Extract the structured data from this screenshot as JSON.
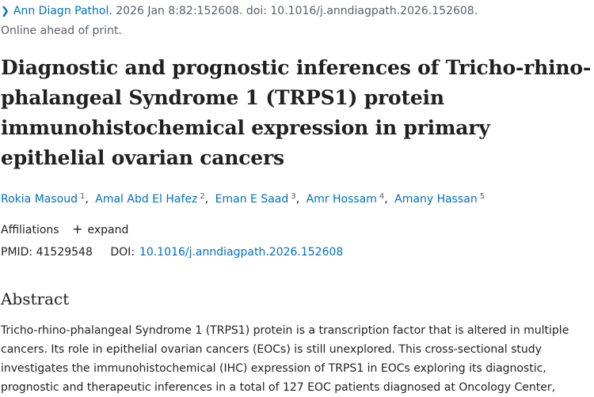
{
  "citation": {
    "chevron_icon": "chevron-right-icon",
    "journal": "Ann Diagn Pathol.",
    "details": "2026 Jan 8:82:152608. doi: 10.1016/j.anndiagpath.2026.152608.",
    "status": "Online ahead of print."
  },
  "article": {
    "title": "Diagnostic and prognostic inferences of Tricho-rhino-phalangeal Syndrome 1 (TRPS1) protein immunohistochemical expression in primary epithelial ovarian cancers"
  },
  "authors": [
    {
      "name": "Rokia Masoud",
      "affiliation": "1"
    },
    {
      "name": "Amal Abd El Hafez",
      "affiliation": "2"
    },
    {
      "name": "Eman E Saad",
      "affiliation": "3"
    },
    {
      "name": "Amr Hossam",
      "affiliation": "4"
    },
    {
      "name": "Amany Hassan",
      "affiliation": "5"
    }
  ],
  "affiliations": {
    "label": "Affiliations",
    "expand_icon": "plus-icon",
    "expand_label": "expand"
  },
  "identifiers": {
    "pmid_label": "PMID:",
    "pmid": "41529548",
    "doi_label": "DOI:",
    "doi": "10.1016/j.anndiagpath.2026.152608"
  },
  "abstract": {
    "heading": "Abstract",
    "text": "Tricho-rhino-phalangeal Syndrome 1 (TRPS1) protein is a transcription factor that is altered in multiple cancers. Its role in epithelial ovarian cancers (EOCs) is still unexplored. This cross-sectional study investigates the immunohistochemical (IHC) expression of TRPS1 in EOCs exploring its diagnostic, prognostic and therapeutic inferences in a total of 127 EOC patients diagnosed at Oncology Center,"
  },
  "colors": {
    "link": "#0071bc",
    "muted": "#5b616b",
    "text": "#212121"
  }
}
